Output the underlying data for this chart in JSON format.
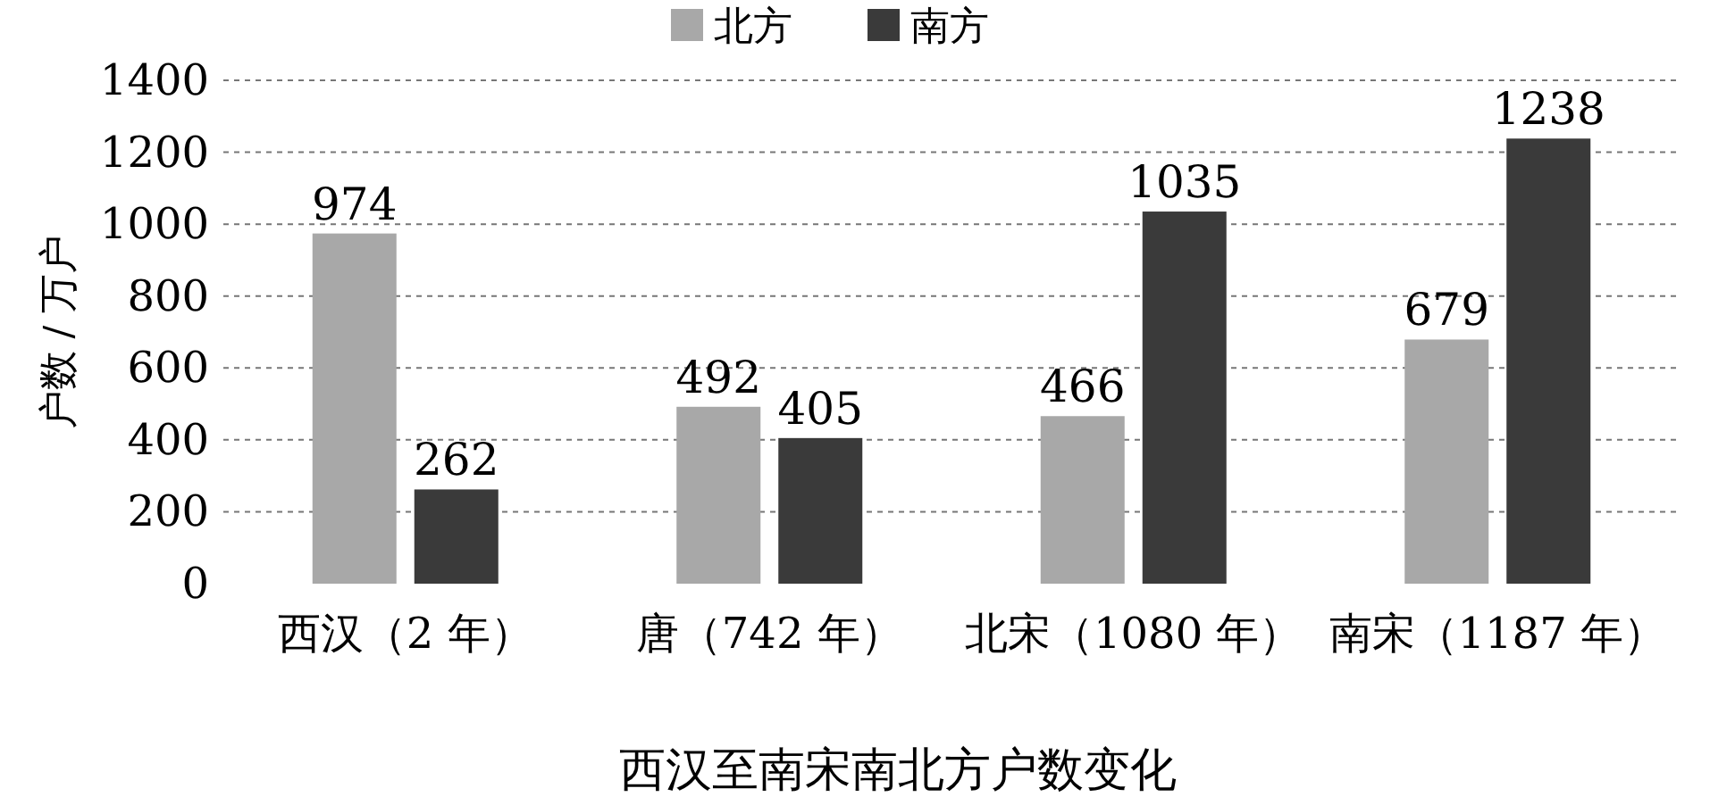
{
  "chart_data": {
    "type": "bar",
    "title": "西汉至南宋南北方户数变化",
    "ylabel": "户数 / 万户",
    "categories": [
      "西汉（2 年）",
      "唐（742 年）",
      "北宋（1080 年）",
      "南宋（1187 年）"
    ],
    "series": [
      {
        "name": "北方",
        "color": "#a8a8a8",
        "values": [
          974,
          492,
          466,
          679
        ]
      },
      {
        "name": "南方",
        "color": "#3a3a3a",
        "values": [
          262,
          405,
          1035,
          1238
        ]
      }
    ],
    "ylim": [
      0,
      1400
    ],
    "yticks": [
      0,
      200,
      400,
      600,
      800,
      1000,
      1200,
      1400
    ],
    "grid": "y",
    "legend": "top",
    "data_labels": true
  }
}
